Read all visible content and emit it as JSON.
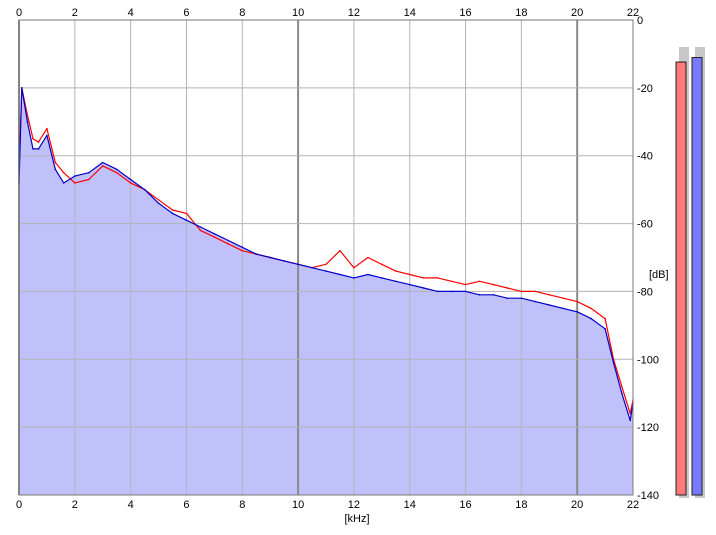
{
  "chart_data": {
    "type": "line",
    "title": "",
    "xlabel": "[kHz]",
    "ylabel": "[dB]",
    "xlim": [
      0,
      22
    ],
    "ylim": [
      -140,
      0
    ],
    "x_ticks": [
      "0",
      "2",
      "4",
      "6",
      "8",
      "10",
      "12",
      "14",
      "16",
      "18",
      "20",
      "22"
    ],
    "y_ticks": [
      "0",
      "-20",
      "-40",
      "-60",
      "-80",
      "-100",
      "-120",
      "-140"
    ],
    "grid": true,
    "fill_color": "#c0c0fb",
    "series": [
      {
        "color": "#ff0000",
        "x": [
          0,
          0.1,
          0.3,
          0.5,
          0.7,
          1.0,
          1.3,
          1.6,
          2.0,
          2.5,
          3.0,
          3.5,
          4.0,
          4.5,
          5.0,
          5.5,
          6.0,
          6.5,
          7.0,
          7.5,
          8.0,
          8.5,
          9.0,
          9.5,
          10.0,
          10.5,
          11.0,
          11.5,
          12.0,
          12.5,
          13.0,
          13.5,
          14.0,
          14.5,
          15.0,
          15.5,
          16.0,
          16.5,
          17.0,
          17.5,
          18.0,
          18.5,
          19.0,
          19.5,
          20.0,
          20.5,
          21.0,
          21.3,
          21.6,
          21.9,
          22.0
        ],
        "values": [
          -45,
          -20,
          -28,
          -35,
          -36,
          -32,
          -42,
          -45,
          -48,
          -47,
          -43,
          -45,
          -48,
          -50,
          -53,
          -56,
          -57,
          -62,
          -64,
          -66,
          -68,
          -69,
          -70,
          -71,
          -72,
          -73,
          -72,
          -68,
          -73,
          -70,
          -72,
          -74,
          -75,
          -76,
          -76,
          -77,
          -78,
          -77,
          -78,
          -79,
          -80,
          -80,
          -81,
          -82,
          -83,
          -85,
          -88,
          -100,
          -108,
          -116,
          -112
        ]
      },
      {
        "color": "#0000c8",
        "x": [
          0,
          0.1,
          0.3,
          0.5,
          0.7,
          1.0,
          1.3,
          1.6,
          2.0,
          2.5,
          3.0,
          3.5,
          4.0,
          4.5,
          5.0,
          5.5,
          6.0,
          6.5,
          7.0,
          7.5,
          8.0,
          8.5,
          9.0,
          9.5,
          10.0,
          10.5,
          11.0,
          11.5,
          12.0,
          12.5,
          13.0,
          13.5,
          14.0,
          14.5,
          15.0,
          15.5,
          16.0,
          16.5,
          17.0,
          17.5,
          18.0,
          18.5,
          19.0,
          19.5,
          20.0,
          20.5,
          21.0,
          21.3,
          21.6,
          21.9,
          22.0
        ],
        "values": [
          -48,
          -20,
          -30,
          -38,
          -38,
          -34,
          -44,
          -48,
          -46,
          -45,
          -42,
          -44,
          -47,
          -50,
          -54,
          -57,
          -59,
          -61,
          -63,
          -65,
          -67,
          -69,
          -70,
          -71,
          -72,
          -73,
          -74,
          -75,
          -76,
          -75,
          -76,
          -77,
          -78,
          -79,
          -80,
          -80,
          -80,
          -81,
          -81,
          -82,
          -82,
          -83,
          -84,
          -85,
          -86,
          -88,
          -91,
          -101,
          -110,
          -118,
          -113
        ]
      }
    ],
    "level_meters": [
      {
        "color": "#ff7a7a",
        "level": 0.96
      },
      {
        "color": "#7a7aff",
        "level": 0.97
      }
    ]
  }
}
